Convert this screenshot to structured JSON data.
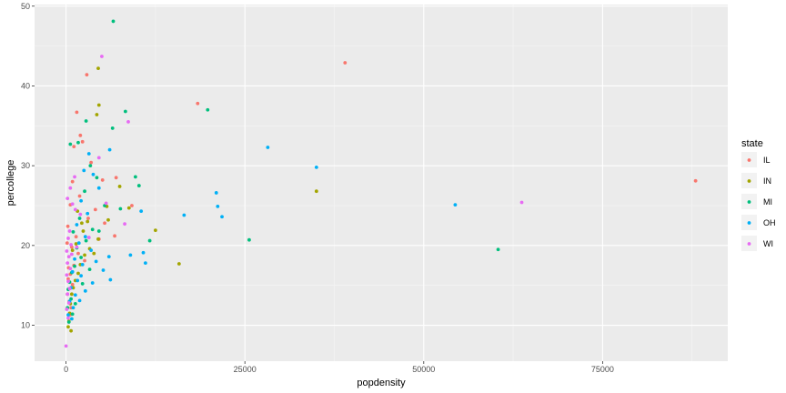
{
  "chart_data": {
    "type": "scatter",
    "xlabel": "popdensity",
    "ylabel": "percollege",
    "xlim": [
      -4400,
      92500
    ],
    "ylim": [
      5.5,
      50.2
    ],
    "xticks": [
      0,
      25000,
      50000,
      75000
    ],
    "xtick_labels": [
      "0",
      "25000",
      "50000",
      "75000"
    ],
    "yticks": [
      10,
      20,
      30,
      40,
      50
    ],
    "ytick_labels": [
      "10",
      "20",
      "30",
      "40",
      "50"
    ],
    "grid": true,
    "legend": {
      "title": "state",
      "position": "right"
    },
    "series": [
      {
        "name": "IL",
        "color": "#F8766D",
        "points": [
          [
            88000,
            28.1
          ],
          [
            39000,
            42.9
          ],
          [
            18400,
            37.8
          ],
          [
            2900,
            41.4
          ],
          [
            1500,
            36.7
          ],
          [
            1100,
            32.4
          ],
          [
            900,
            28.0
          ],
          [
            600,
            25.1
          ],
          [
            2000,
            33.8
          ],
          [
            2300,
            33.0
          ],
          [
            3500,
            30.4
          ],
          [
            5100,
            28.2
          ],
          [
            7000,
            28.5
          ],
          [
            9200,
            25.0
          ],
          [
            4100,
            24.5
          ],
          [
            5400,
            22.8
          ],
          [
            6800,
            21.2
          ],
          [
            1400,
            21.1
          ],
          [
            800,
            19.8
          ],
          [
            1700,
            19.0
          ],
          [
            2600,
            18.1
          ],
          [
            350,
            17.2
          ],
          [
            600,
            16.4
          ],
          [
            300,
            15.8
          ],
          [
            900,
            15.1
          ],
          [
            200,
            13.9
          ],
          [
            450,
            13.0
          ],
          [
            700,
            12.2
          ],
          [
            550,
            11.3
          ],
          [
            1100,
            17.5
          ],
          [
            3100,
            23.4
          ],
          [
            4600,
            20.8
          ],
          [
            150,
            20.3
          ],
          [
            250,
            22.4
          ],
          [
            1900,
            26.2
          ]
        ]
      },
      {
        "name": "IN",
        "color": "#A3A500",
        "points": [
          [
            4500,
            42.2
          ],
          [
            4600,
            37.6
          ],
          [
            4300,
            36.4
          ],
          [
            7500,
            27.4
          ],
          [
            8800,
            24.7
          ],
          [
            12500,
            21.9
          ],
          [
            15800,
            17.7
          ],
          [
            35000,
            26.8
          ],
          [
            5700,
            24.9
          ],
          [
            3000,
            23.0
          ],
          [
            2200,
            22.8
          ],
          [
            1600,
            24.3
          ],
          [
            4500,
            20.8
          ],
          [
            3300,
            19.6
          ],
          [
            2600,
            18.8
          ],
          [
            2000,
            17.6
          ],
          [
            1700,
            16.5
          ],
          [
            1300,
            15.6
          ],
          [
            1000,
            14.7
          ],
          [
            800,
            13.9
          ],
          [
            600,
            12.7
          ],
          [
            500,
            11.5
          ],
          [
            400,
            10.5
          ],
          [
            300,
            9.8
          ],
          [
            700,
            9.3
          ],
          [
            1400,
            20.2
          ],
          [
            2400,
            21.8
          ],
          [
            5900,
            23.2
          ],
          [
            3900,
            19.0
          ],
          [
            900,
            19.4
          ]
        ]
      },
      {
        "name": "MI",
        "color": "#00BF7D",
        "points": [
          [
            6600,
            48.1
          ],
          [
            19800,
            37.0
          ],
          [
            8300,
            36.8
          ],
          [
            6500,
            34.7
          ],
          [
            9700,
            28.6
          ],
          [
            10200,
            27.5
          ],
          [
            25600,
            20.7
          ],
          [
            60400,
            19.5
          ],
          [
            11700,
            20.6
          ],
          [
            2800,
            35.6
          ],
          [
            1700,
            32.9
          ],
          [
            600,
            32.7
          ],
          [
            3400,
            30.0
          ],
          [
            4300,
            28.5
          ],
          [
            2600,
            26.8
          ],
          [
            5400,
            25.0
          ],
          [
            7600,
            24.6
          ],
          [
            1900,
            23.4
          ],
          [
            3700,
            22.0
          ],
          [
            1000,
            21.7
          ],
          [
            2800,
            20.6
          ],
          [
            1500,
            19.7
          ],
          [
            2100,
            18.5
          ],
          [
            1200,
            17.4
          ],
          [
            800,
            16.6
          ],
          [
            500,
            15.4
          ],
          [
            300,
            14.5
          ],
          [
            700,
            13.3
          ],
          [
            200,
            12.2
          ],
          [
            900,
            11.4
          ],
          [
            400,
            10.4
          ],
          [
            1300,
            12.7
          ],
          [
            2300,
            15.2
          ],
          [
            3300,
            17.0
          ],
          [
            4600,
            21.8
          ]
        ]
      },
      {
        "name": "OH",
        "color": "#00B0F6",
        "points": [
          [
            54400,
            25.1
          ],
          [
            35000,
            29.8
          ],
          [
            28200,
            32.3
          ],
          [
            21000,
            26.6
          ],
          [
            21200,
            24.9
          ],
          [
            21800,
            23.6
          ],
          [
            16500,
            23.8
          ],
          [
            10500,
            24.3
          ],
          [
            9000,
            18.8
          ],
          [
            10800,
            19.1
          ],
          [
            11100,
            17.8
          ],
          [
            6000,
            18.6
          ],
          [
            6200,
            15.7
          ],
          [
            6100,
            32.0
          ],
          [
            3200,
            31.5
          ],
          [
            2500,
            29.4
          ],
          [
            3800,
            28.9
          ],
          [
            4600,
            27.2
          ],
          [
            2100,
            25.6
          ],
          [
            3000,
            24.0
          ],
          [
            1500,
            22.6
          ],
          [
            2700,
            21.1
          ],
          [
            1800,
            20.3
          ],
          [
            3500,
            19.4
          ],
          [
            1200,
            18.3
          ],
          [
            2300,
            17.6
          ],
          [
            900,
            16.7
          ],
          [
            1600,
            15.6
          ],
          [
            700,
            14.7
          ],
          [
            1300,
            13.8
          ],
          [
            500,
            13.0
          ],
          [
            1000,
            12.2
          ],
          [
            300,
            11.3
          ],
          [
            2100,
            16.2
          ],
          [
            2700,
            14.3
          ],
          [
            4200,
            18.0
          ],
          [
            5200,
            16.9
          ],
          [
            3700,
            15.3
          ],
          [
            1900,
            13.1
          ],
          [
            800,
            10.8
          ]
        ]
      },
      {
        "name": "WI",
        "color": "#E76BF3",
        "points": [
          [
            63700,
            25.4
          ],
          [
            5000,
            43.7
          ],
          [
            8700,
            35.5
          ],
          [
            4600,
            31.0
          ],
          [
            1200,
            28.6
          ],
          [
            600,
            27.2
          ],
          [
            200,
            25.9
          ],
          [
            900,
            25.2
          ],
          [
            1300,
            24.5
          ],
          [
            2000,
            23.9
          ],
          [
            8200,
            22.7
          ],
          [
            3200,
            21.0
          ],
          [
            500,
            21.8
          ],
          [
            300,
            20.9
          ],
          [
            700,
            20.1
          ],
          [
            100,
            19.3
          ],
          [
            400,
            18.6
          ],
          [
            200,
            17.8
          ],
          [
            600,
            17.1
          ],
          [
            100,
            16.3
          ],
          [
            300,
            15.5
          ],
          [
            500,
            14.6
          ],
          [
            200,
            13.9
          ],
          [
            400,
            12.8
          ],
          [
            100,
            12.0
          ],
          [
            300,
            10.9
          ],
          [
            0,
            7.4
          ],
          [
            800,
            18.9
          ],
          [
            1500,
            19.8
          ],
          [
            5600,
            25.3
          ]
        ]
      }
    ]
  }
}
